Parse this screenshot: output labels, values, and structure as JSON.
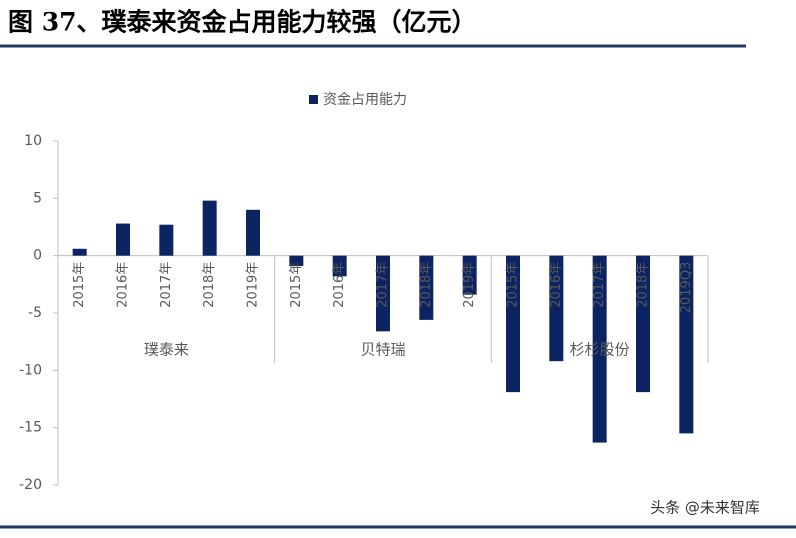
{
  "chart_data": {
    "type": "bar",
    "title": "图 37、璞泰来资金占用能力较强（亿元）",
    "groups": [
      {
        "name": "璞泰来",
        "categories": [
          "2015年",
          "2016年",
          "2017年",
          "2018年",
          "2019年"
        ]
      },
      {
        "name": "贝特瑞",
        "categories": [
          "2015年",
          "2016年",
          "2017年",
          "2018年",
          "2019年"
        ]
      },
      {
        "name": "杉杉股份",
        "categories": [
          "2015年",
          "2016年",
          "2017年",
          "2018年",
          "2019Q3"
        ]
      }
    ],
    "series": [
      {
        "name": "资金占用能力",
        "color": "#0c2461",
        "values": [
          0.6,
          2.8,
          2.7,
          4.8,
          4.0,
          -0.9,
          -1.8,
          -6.6,
          -5.6,
          -3.4,
          -11.9,
          -9.2,
          -16.3,
          -11.9,
          -15.5
        ]
      }
    ],
    "ylim": [
      -20,
      10
    ],
    "yticks": [
      -20,
      -15,
      -10,
      -5,
      0,
      5,
      10
    ],
    "legend": "top",
    "watermark": "头条 @未来智库"
  }
}
